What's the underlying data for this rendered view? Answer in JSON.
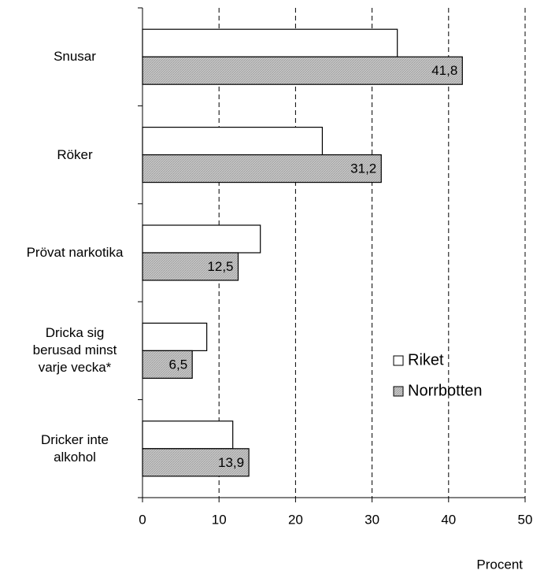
{
  "chart_data": {
    "type": "bar",
    "orientation": "horizontal",
    "categories": [
      "Snusar",
      "Röker",
      "Prövat narkotika",
      "Dricka sig\nberusad minst\nvarje vecka*",
      "Dricker inte\nalkohol"
    ],
    "series": [
      {
        "name": "Riket",
        "color": "#ffffff",
        "values": [
          33.3,
          23.5,
          15.4,
          8.4,
          11.8
        ]
      },
      {
        "name": "Norrbotten",
        "color": "#c0c0c0",
        "values": [
          41.8,
          31.2,
          12.5,
          6.5,
          13.9
        ],
        "value_labels": [
          "41,8",
          "31,2",
          "12,5",
          "6,5",
          "13,9"
        ]
      }
    ],
    "xlim": [
      0,
      50
    ],
    "xticks": [
      0,
      10,
      20,
      30,
      40,
      50
    ],
    "x_label": "Procent",
    "grid": true,
    "legend": "center right"
  }
}
